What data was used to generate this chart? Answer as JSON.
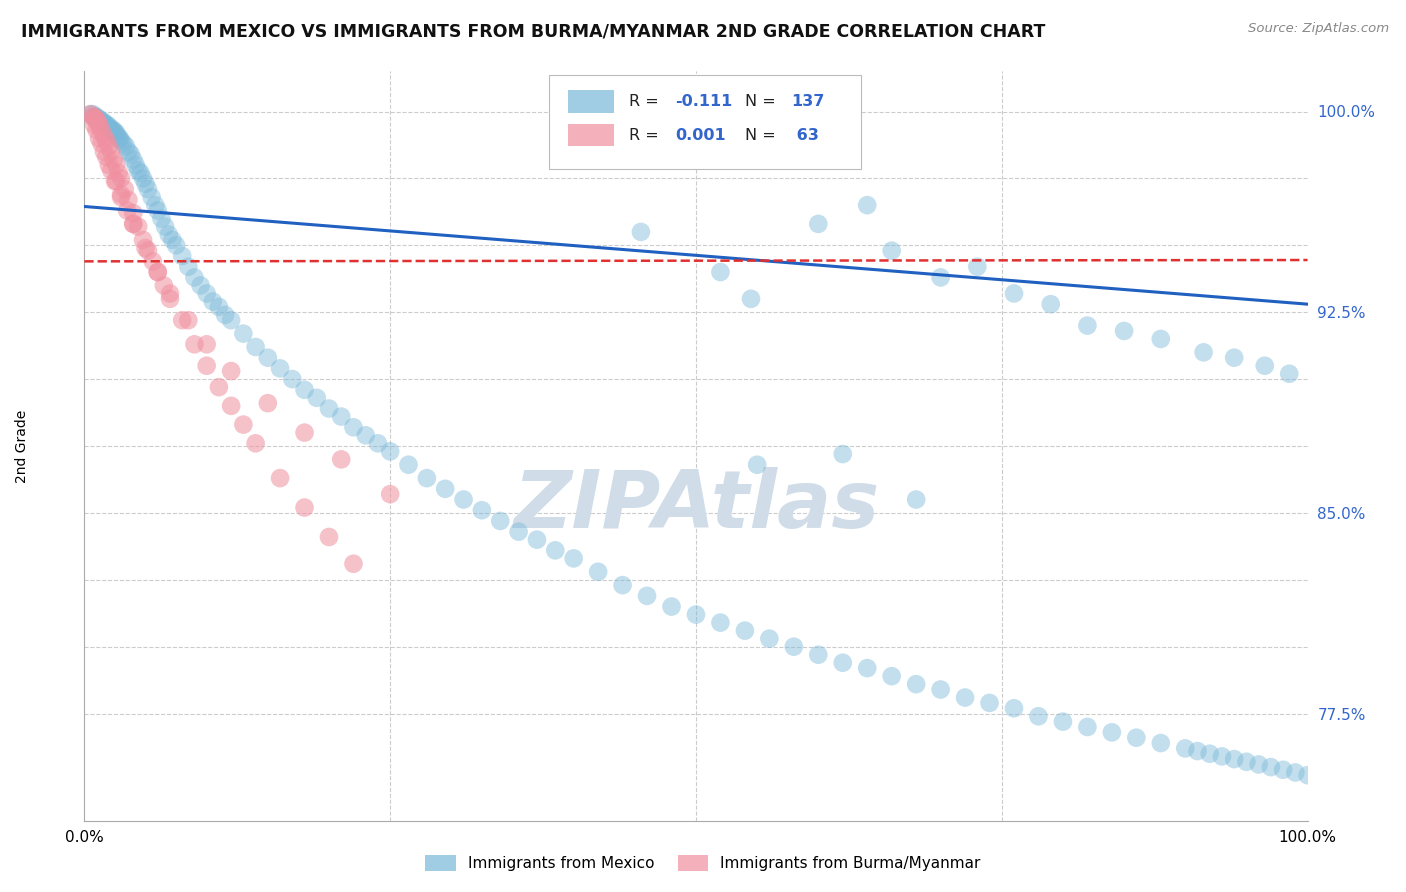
{
  "title": "IMMIGRANTS FROM MEXICO VS IMMIGRANTS FROM BURMA/MYANMAR 2ND GRADE CORRELATION CHART",
  "source": "Source: ZipAtlas.com",
  "ylabel": "2nd Grade",
  "xlim": [
    0.0,
    1.0
  ],
  "ylim": [
    0.735,
    1.015
  ],
  "ytick_positions": [
    0.775,
    0.8,
    0.825,
    0.85,
    0.875,
    0.9,
    0.925,
    0.95,
    0.975,
    1.0
  ],
  "ytick_labels": [
    "77.5%",
    "",
    "",
    "85.0%",
    "",
    "",
    "92.5%",
    "",
    "",
    "100.0%"
  ],
  "legend_blue_r": "-0.111",
  "legend_blue_n": "137",
  "legend_pink_r": "0.001",
  "legend_pink_n": "63",
  "blue_color": "#7ab8d9",
  "pink_color": "#f090a0",
  "blue_line_color": "#2060c0",
  "pink_line_color": "#e03030",
  "watermark_text": "ZIPAtlas",
  "watermark_color": "#d0dde8",
  "grid_color": "#cccccc",
  "background_color": "#ffffff",
  "blue_trend_y0": 0.9645,
  "blue_trend_y1": 0.928,
  "pink_trend_y0": 0.944,
  "pink_trend_y1": 0.9445,
  "blue_x": [
    0.005,
    0.007,
    0.008,
    0.009,
    0.01,
    0.011,
    0.012,
    0.013,
    0.014,
    0.015,
    0.016,
    0.017,
    0.018,
    0.019,
    0.02,
    0.021,
    0.022,
    0.023,
    0.024,
    0.025,
    0.026,
    0.027,
    0.028,
    0.029,
    0.03,
    0.032,
    0.034,
    0.036,
    0.038,
    0.04,
    0.042,
    0.044,
    0.046,
    0.048,
    0.05,
    0.052,
    0.055,
    0.058,
    0.06,
    0.063,
    0.066,
    0.069,
    0.072,
    0.075,
    0.08,
    0.085,
    0.09,
    0.095,
    0.1,
    0.105,
    0.11,
    0.115,
    0.12,
    0.13,
    0.14,
    0.15,
    0.16,
    0.17,
    0.18,
    0.19,
    0.2,
    0.21,
    0.22,
    0.23,
    0.24,
    0.25,
    0.265,
    0.28,
    0.295,
    0.31,
    0.325,
    0.34,
    0.355,
    0.37,
    0.385,
    0.4,
    0.42,
    0.44,
    0.46,
    0.48,
    0.5,
    0.52,
    0.54,
    0.56,
    0.58,
    0.6,
    0.62,
    0.64,
    0.66,
    0.68,
    0.7,
    0.72,
    0.74,
    0.76,
    0.78,
    0.8,
    0.82,
    0.84,
    0.86,
    0.88,
    0.9,
    0.91,
    0.92,
    0.93,
    0.94,
    0.95,
    0.96,
    0.97,
    0.98,
    0.99,
    1.0,
    0.455,
    0.52,
    0.545,
    0.6,
    0.64,
    0.66,
    0.7,
    0.73,
    0.76,
    0.79,
    0.82,
    0.85,
    0.88,
    0.915,
    0.94,
    0.965,
    0.985,
    0.55,
    0.62,
    0.68
  ],
  "blue_y": [
    0.999,
    0.999,
    0.998,
    0.998,
    0.998,
    0.997,
    0.997,
    0.997,
    0.996,
    0.996,
    0.996,
    0.995,
    0.995,
    0.995,
    0.994,
    0.994,
    0.993,
    0.993,
    0.993,
    0.992,
    0.992,
    0.991,
    0.99,
    0.99,
    0.989,
    0.988,
    0.987,
    0.985,
    0.984,
    0.982,
    0.98,
    0.978,
    0.977,
    0.975,
    0.973,
    0.971,
    0.968,
    0.965,
    0.963,
    0.96,
    0.957,
    0.954,
    0.952,
    0.95,
    0.946,
    0.942,
    0.938,
    0.935,
    0.932,
    0.929,
    0.927,
    0.924,
    0.922,
    0.917,
    0.912,
    0.908,
    0.904,
    0.9,
    0.896,
    0.893,
    0.889,
    0.886,
    0.882,
    0.879,
    0.876,
    0.873,
    0.868,
    0.863,
    0.859,
    0.855,
    0.851,
    0.847,
    0.843,
    0.84,
    0.836,
    0.833,
    0.828,
    0.823,
    0.819,
    0.815,
    0.812,
    0.809,
    0.806,
    0.803,
    0.8,
    0.797,
    0.794,
    0.792,
    0.789,
    0.786,
    0.784,
    0.781,
    0.779,
    0.777,
    0.774,
    0.772,
    0.77,
    0.768,
    0.766,
    0.764,
    0.762,
    0.761,
    0.76,
    0.759,
    0.758,
    0.757,
    0.756,
    0.755,
    0.754,
    0.753,
    0.752,
    0.955,
    0.94,
    0.93,
    0.958,
    0.965,
    0.948,
    0.938,
    0.942,
    0.932,
    0.928,
    0.92,
    0.918,
    0.915,
    0.91,
    0.908,
    0.905,
    0.902,
    0.868,
    0.872,
    0.855
  ],
  "pink_x": [
    0.005,
    0.007,
    0.008,
    0.009,
    0.01,
    0.011,
    0.012,
    0.013,
    0.015,
    0.017,
    0.018,
    0.02,
    0.022,
    0.024,
    0.026,
    0.028,
    0.03,
    0.033,
    0.036,
    0.04,
    0.044,
    0.048,
    0.052,
    0.056,
    0.06,
    0.065,
    0.07,
    0.08,
    0.09,
    0.1,
    0.11,
    0.12,
    0.13,
    0.14,
    0.16,
    0.18,
    0.2,
    0.22,
    0.01,
    0.014,
    0.018,
    0.022,
    0.026,
    0.03,
    0.035,
    0.04,
    0.05,
    0.06,
    0.07,
    0.085,
    0.1,
    0.12,
    0.15,
    0.18,
    0.21,
    0.25,
    0.008,
    0.012,
    0.016,
    0.02,
    0.025,
    0.03,
    0.04
  ],
  "pink_y": [
    0.999,
    0.998,
    0.998,
    0.997,
    0.997,
    0.996,
    0.995,
    0.994,
    0.992,
    0.99,
    0.989,
    0.987,
    0.985,
    0.982,
    0.98,
    0.977,
    0.975,
    0.971,
    0.967,
    0.962,
    0.957,
    0.952,
    0.948,
    0.944,
    0.94,
    0.935,
    0.93,
    0.922,
    0.913,
    0.905,
    0.897,
    0.89,
    0.883,
    0.876,
    0.863,
    0.852,
    0.841,
    0.831,
    0.993,
    0.988,
    0.983,
    0.978,
    0.974,
    0.969,
    0.963,
    0.958,
    0.949,
    0.94,
    0.932,
    0.922,
    0.913,
    0.903,
    0.891,
    0.88,
    0.87,
    0.857,
    0.995,
    0.99,
    0.985,
    0.98,
    0.974,
    0.968,
    0.958
  ]
}
